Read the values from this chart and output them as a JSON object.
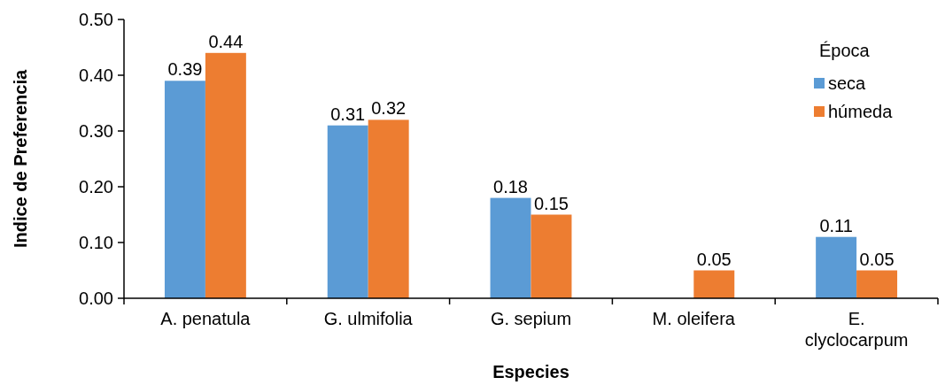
{
  "chart_data": {
    "type": "bar",
    "xlabel": "Especies",
    "ylabel": "Indice de Preferencia",
    "legend_title": "Época",
    "legend": "top right",
    "grid": false,
    "categories": [
      "A. penatula",
      "G. ulmifolia",
      "G. sepium",
      "M. oleifera",
      "E. clyclocarpum"
    ],
    "ylim": [
      0,
      0.5
    ],
    "yticks": [
      {
        "value": 0,
        "label": "0.00"
      },
      {
        "value": 0.1,
        "label": "0.10"
      },
      {
        "value": 0.2,
        "label": "0.20"
      },
      {
        "value": 0.3,
        "label": "0.30"
      },
      {
        "value": 0.4,
        "label": "0.40"
      },
      {
        "value": 0.5,
        "label": "0.50"
      }
    ],
    "series": [
      {
        "name": "seca",
        "color": "#5b9bd5",
        "values": [
          0.39,
          0.31,
          0.18,
          null,
          0.11
        ],
        "value_labels": [
          "0.39",
          "0.31",
          "0.18",
          null,
          "0.11"
        ]
      },
      {
        "name": "húmeda",
        "color": "#ed7d31",
        "values": [
          0.44,
          0.32,
          0.15,
          0.05,
          0.05
        ],
        "value_labels": [
          "0.44",
          "0.32",
          "0.15",
          "0.05",
          "0.05"
        ]
      }
    ]
  }
}
